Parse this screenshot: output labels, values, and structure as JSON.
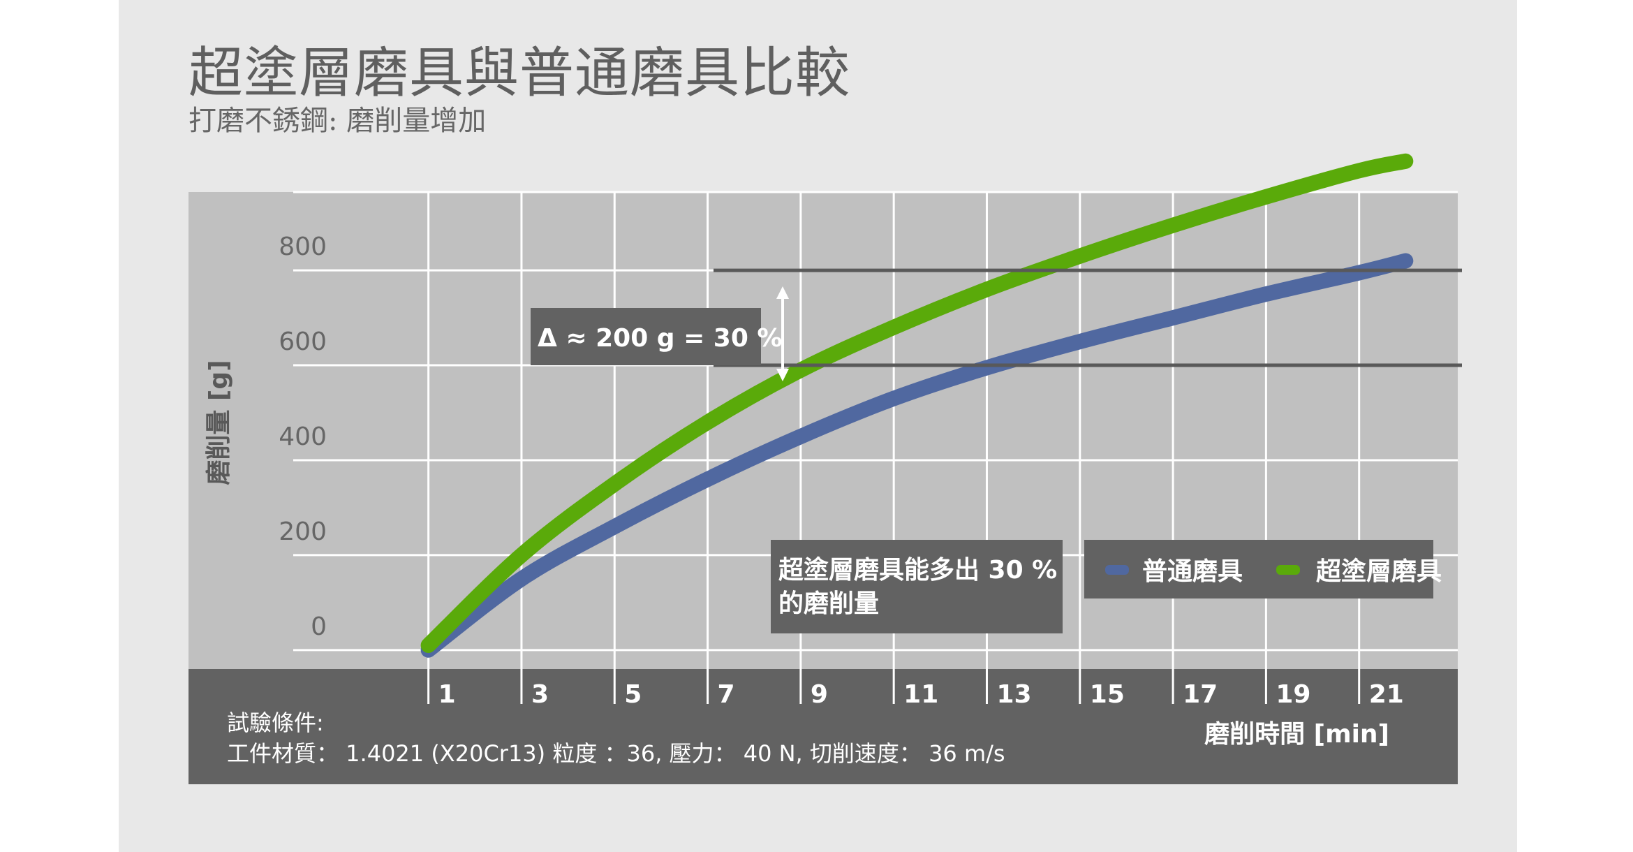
{
  "page": {
    "title": "超塗層磨具與普通磨具比較",
    "subtitle": "打磨不銹鋼: 磨削量增加"
  },
  "colors": {
    "panel_bg": "#e8e8e8",
    "plot_bg": "#c0c0c0",
    "footer_bg": "#626262",
    "grid": "#ffffff",
    "conventional": "#5068a0",
    "super_coated": "#5aaa0a",
    "annotation_bg": "#626262",
    "reference_line": "#595959"
  },
  "chart_data": {
    "type": "line",
    "title": "超塗層磨具與普通磨具比較",
    "subtitle": "打磨不銹鋼: 磨削量增加",
    "xlabel": "磨削時間 [min]",
    "ylabel": "磨削量 [g]",
    "x": [
      1,
      3,
      5,
      7,
      9,
      11,
      13,
      15,
      17,
      19,
      21,
      22
    ],
    "xticks": [
      "1",
      "3",
      "5",
      "7",
      "9",
      "11",
      "13",
      "15",
      "17",
      "19",
      "21"
    ],
    "yticks": [
      "0",
      "200",
      "400",
      "600",
      "800"
    ],
    "xlim": [
      -0.6,
      23
    ],
    "ylim": [
      -40,
      965
    ],
    "grid": true,
    "legend_position": "bottom-right",
    "series": [
      {
        "name": "普通磨具",
        "color": "#5068a0",
        "values": [
          0,
          150,
          260,
          360,
          450,
          530,
          595,
          650,
          700,
          750,
          795,
          820
        ]
      },
      {
        "name": "超塗層磨具",
        "color": "#5aaa0a",
        "values": [
          10,
          200,
          350,
          480,
          590,
          680,
          760,
          830,
          895,
          955,
          1010,
          1030
        ]
      }
    ],
    "annotations": [
      {
        "text": "Δ ≈ 200 g = 30 %"
      },
      {
        "lines": [
          "超塗層磨具能多出 30 %",
          "的磨削量"
        ]
      }
    ],
    "reference_lines_y": [
      600,
      800
    ],
    "test_conditions": {
      "heading": "試驗條件:",
      "detail": "工件材質： 1.4021 (X20Cr13) 粒度 ：36,  壓力： 40 N, 切削速度： 36 m/s"
    }
  }
}
